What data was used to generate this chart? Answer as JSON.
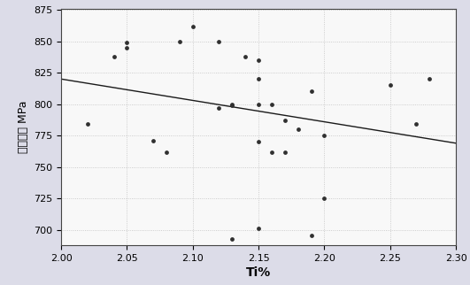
{
  "all_x": [
    2.02,
    2.04,
    2.05,
    2.05,
    2.07,
    2.08,
    2.09,
    2.1,
    2.12,
    2.12,
    2.13,
    2.13,
    2.14,
    2.15,
    2.15,
    2.15,
    2.15,
    2.16,
    2.16,
    2.17,
    2.17,
    2.18,
    2.19,
    2.2,
    2.25,
    2.27,
    2.28,
    2.13,
    2.15,
    2.19,
    2.2
  ],
  "all_y": [
    784,
    838,
    849,
    845,
    771,
    762,
    850,
    862,
    850,
    797,
    799,
    800,
    838,
    835,
    820,
    800,
    770,
    762,
    800,
    787,
    762,
    780,
    810,
    775,
    815,
    784,
    820,
    693,
    701,
    696,
    725
  ],
  "trendline_x": [
    2.0,
    2.3
  ],
  "trendline_y": [
    820,
    769
  ],
  "xlabel": "Ti%",
  "ylabel": "屈服强度 MPa",
  "xlim": [
    2.0,
    2.3
  ],
  "ylim": [
    688,
    876
  ],
  "xticks": [
    2.0,
    2.05,
    2.1,
    2.15,
    2.2,
    2.25,
    2.3
  ],
  "yticks": [
    700,
    725,
    750,
    775,
    800,
    825,
    850,
    875
  ],
  "figure_bg": "#dcdce8",
  "plot_bg": "#f8f8f8",
  "dot_color": "#303030",
  "line_color": "#1a1a1a",
  "dot_size": 12,
  "tick_labelsize": 8,
  "xlabel_fontsize": 10,
  "ylabel_fontsize": 9,
  "grid_color": "#c0c0c0",
  "grid_linestyle": ":",
  "grid_linewidth": 0.6
}
